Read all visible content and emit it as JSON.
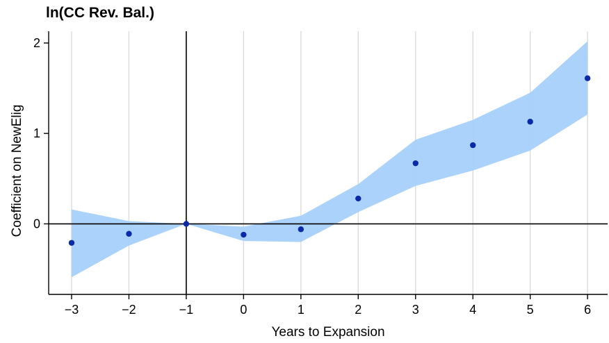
{
  "chart_data": {
    "type": "scatter",
    "title": "ln(CC Rev. Bal.)",
    "xlabel": "Years to Expansion",
    "ylabel": "Coefficient on NewElig",
    "x": [
      -3,
      -2,
      -1,
      0,
      1,
      2,
      3,
      4,
      5,
      6
    ],
    "x_tick_labels": [
      "−3",
      "−2",
      "−1",
      "0",
      "1",
      "2",
      "3",
      "4",
      "5",
      "6"
    ],
    "y_ticks": [
      0,
      1,
      2
    ],
    "y_tick_labels": [
      "0",
      "1",
      "2"
    ],
    "series": [
      {
        "values": [
          -0.21,
          -0.11,
          0.0,
          -0.12,
          -0.06,
          0.28,
          0.67,
          0.87,
          1.13,
          1.61
        ],
        "ci_lower": [
          -0.59,
          -0.24,
          0.0,
          -0.19,
          -0.2,
          0.13,
          0.42,
          0.59,
          0.81,
          1.21
        ],
        "ci_upper": [
          0.16,
          0.03,
          0.0,
          -0.03,
          0.09,
          0.44,
          0.93,
          1.15,
          1.45,
          2.02
        ]
      }
    ],
    "xlim": [
      -3.4,
      6.35
    ],
    "ylim": [
      -0.78,
      2.13
    ],
    "reference_lines": {
      "x": -1,
      "y": 0
    },
    "grid": true,
    "colors": {
      "points": "#0a2aa8",
      "band": "#a6d0fb",
      "grid": "#d9d9d9",
      "axis": "#000000"
    }
  }
}
